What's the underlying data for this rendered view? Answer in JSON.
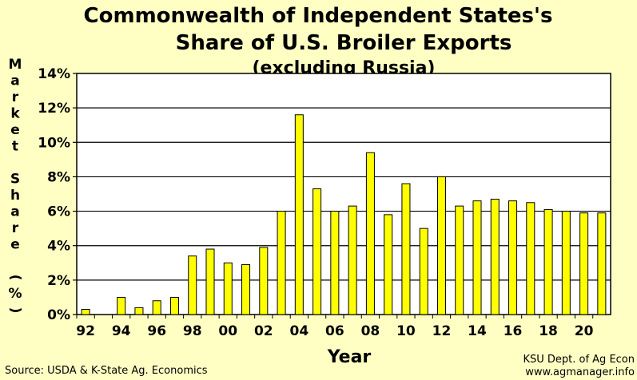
{
  "chart_data": {
    "type": "bar",
    "title": "Commonwealth of Independent States's",
    "title_line2": "Share of U.S. Broiler Exports",
    "subtitle": "(excluding Russia)",
    "ylabel_word1": "Market",
    "ylabel_word2": "Share",
    "ylabel_unit": "(%)",
    "xlabel": "Year",
    "source": "Source:  USDA & K-State Ag. Economics",
    "credit_line1": "KSU Dept. of Ag Econ",
    "credit_line2": "www.agmanager.info",
    "ylim": [
      0,
      14
    ],
    "yticks": [
      0,
      2,
      4,
      6,
      8,
      10,
      12,
      14
    ],
    "ytick_labels": [
      "0%",
      "2%",
      "4%",
      "6%",
      "8%",
      "10%",
      "12%",
      "14%"
    ],
    "grid": true,
    "bar_color": "#ffff00",
    "background_color": "#ffffc4",
    "categories": [
      "92",
      "93",
      "94",
      "95",
      "96",
      "97",
      "98",
      "99",
      "00",
      "01",
      "02",
      "03",
      "04",
      "05",
      "06",
      "07",
      "08",
      "09",
      "10",
      "11",
      "12",
      "13",
      "14",
      "15",
      "16",
      "17",
      "18",
      "19",
      "20",
      "21"
    ],
    "xtick_labels": [
      "92",
      "",
      "94",
      "",
      "96",
      "",
      "98",
      "",
      "00",
      "",
      "02",
      "",
      "04",
      "",
      "06",
      "",
      "08",
      "",
      "10",
      "",
      "12",
      "",
      "14",
      "",
      "16",
      "",
      "18",
      "",
      "20",
      ""
    ],
    "values": [
      0.3,
      0,
      1.0,
      0.4,
      0.8,
      1.0,
      3.4,
      3.8,
      3.0,
      2.9,
      3.9,
      6.0,
      11.6,
      7.3,
      6.0,
      6.3,
      9.4,
      5.8,
      7.6,
      5.0,
      8.0,
      6.3,
      6.6,
      6.7,
      6.6,
      6.5,
      6.1,
      6.0,
      5.9,
      5.9
    ]
  }
}
